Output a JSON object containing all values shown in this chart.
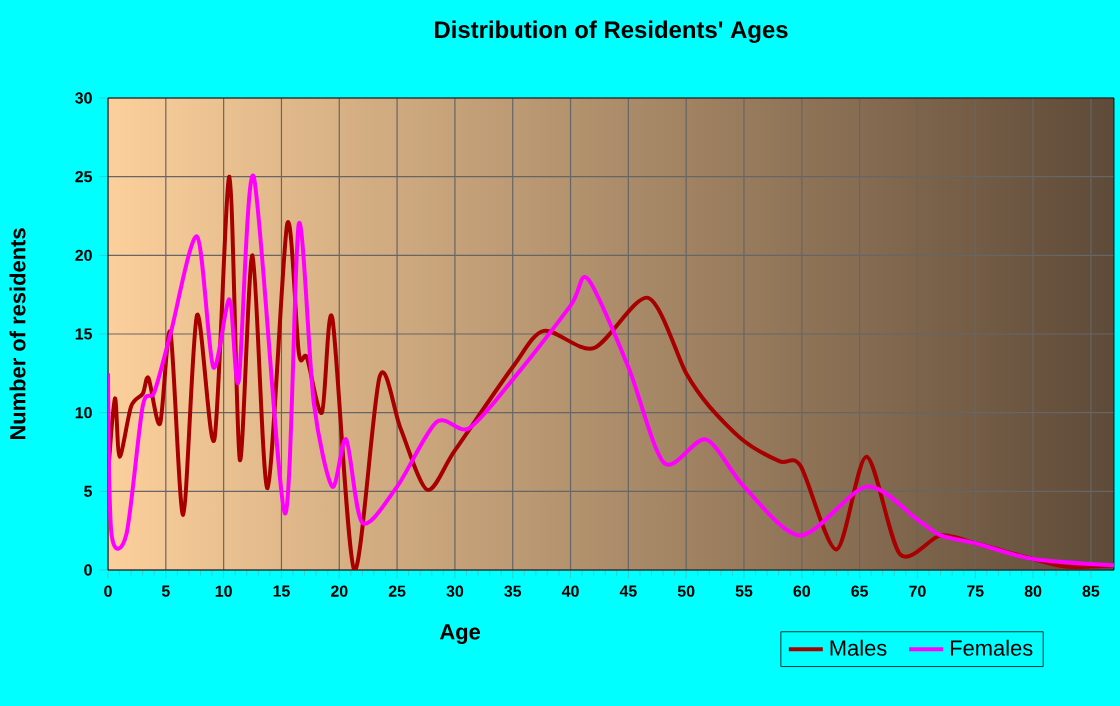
{
  "chart_data": {
    "type": "line",
    "title": "Distribution of Residents' Ages",
    "xlabel": "Age",
    "ylabel": "Number of residents",
    "xlim": [
      0,
      87
    ],
    "ylim": [
      0,
      30
    ],
    "xticks": [
      0,
      5,
      10,
      15,
      20,
      25,
      30,
      35,
      40,
      45,
      50,
      55,
      60,
      65,
      70,
      75,
      80,
      85
    ],
    "yticks": [
      0,
      5,
      10,
      15,
      20,
      25,
      30
    ],
    "grid": true,
    "legend": "bottom right",
    "marker": "none",
    "line_style": "solid",
    "series": [
      {
        "name": "Males",
        "color": "#a80000",
        "x": [
          0,
          0.6,
          1,
          2,
          3,
          3.5,
          4.5,
          5.4,
          6.5,
          7.7,
          9.2,
          10.5,
          11.4,
          12.5,
          13.8,
          15.5,
          16.5,
          17.2,
          18.5,
          19.4,
          21.3,
          23.5,
          25.3,
          27.6,
          30,
          35,
          37.7,
          42,
          46.7,
          50,
          52,
          55,
          58.1,
          59.9,
          63,
          65.6,
          68.5,
          72,
          75,
          80,
          83,
          87
        ],
        "values": [
          6,
          10.9,
          7.2,
          10.4,
          11.2,
          12.2,
          9.3,
          15.1,
          3.5,
          16.2,
          8.3,
          25,
          7,
          20,
          5.2,
          22,
          13.8,
          13.5,
          10,
          16,
          0,
          12.3,
          9,
          5.1,
          7.6,
          12.9,
          15.2,
          14.1,
          17.3,
          12.5,
          10.4,
          8.2,
          6.9,
          6.6,
          1.3,
          7.2,
          1,
          2.2,
          1.7,
          0.7,
          0.2,
          0.3
        ]
      },
      {
        "name": "Females",
        "color": "#ff00ff",
        "x": [
          0,
          0.3,
          1.6,
          3,
          4,
          5.4,
          7.7,
          9.1,
          10.5,
          11.3,
          12.6,
          15.3,
          16.5,
          17.8,
          19.4,
          20.6,
          22,
          25,
          28.4,
          31.2,
          35,
          40,
          41.5,
          45,
          48.1,
          51.7,
          55,
          59.9,
          65.6,
          70,
          72,
          75,
          80,
          87
        ],
        "values": [
          12.5,
          2.3,
          2.3,
          10.4,
          11.3,
          15,
          21.2,
          12.9,
          17.2,
          12,
          25,
          3.6,
          22,
          10.6,
          5.3,
          8.3,
          3,
          5.3,
          9.4,
          9,
          12.1,
          16.8,
          18.5,
          12.9,
          6.8,
          8.3,
          5.3,
          2.2,
          5.3,
          3.2,
          2.2,
          1.7,
          0.7,
          0.3
        ]
      }
    ]
  }
}
